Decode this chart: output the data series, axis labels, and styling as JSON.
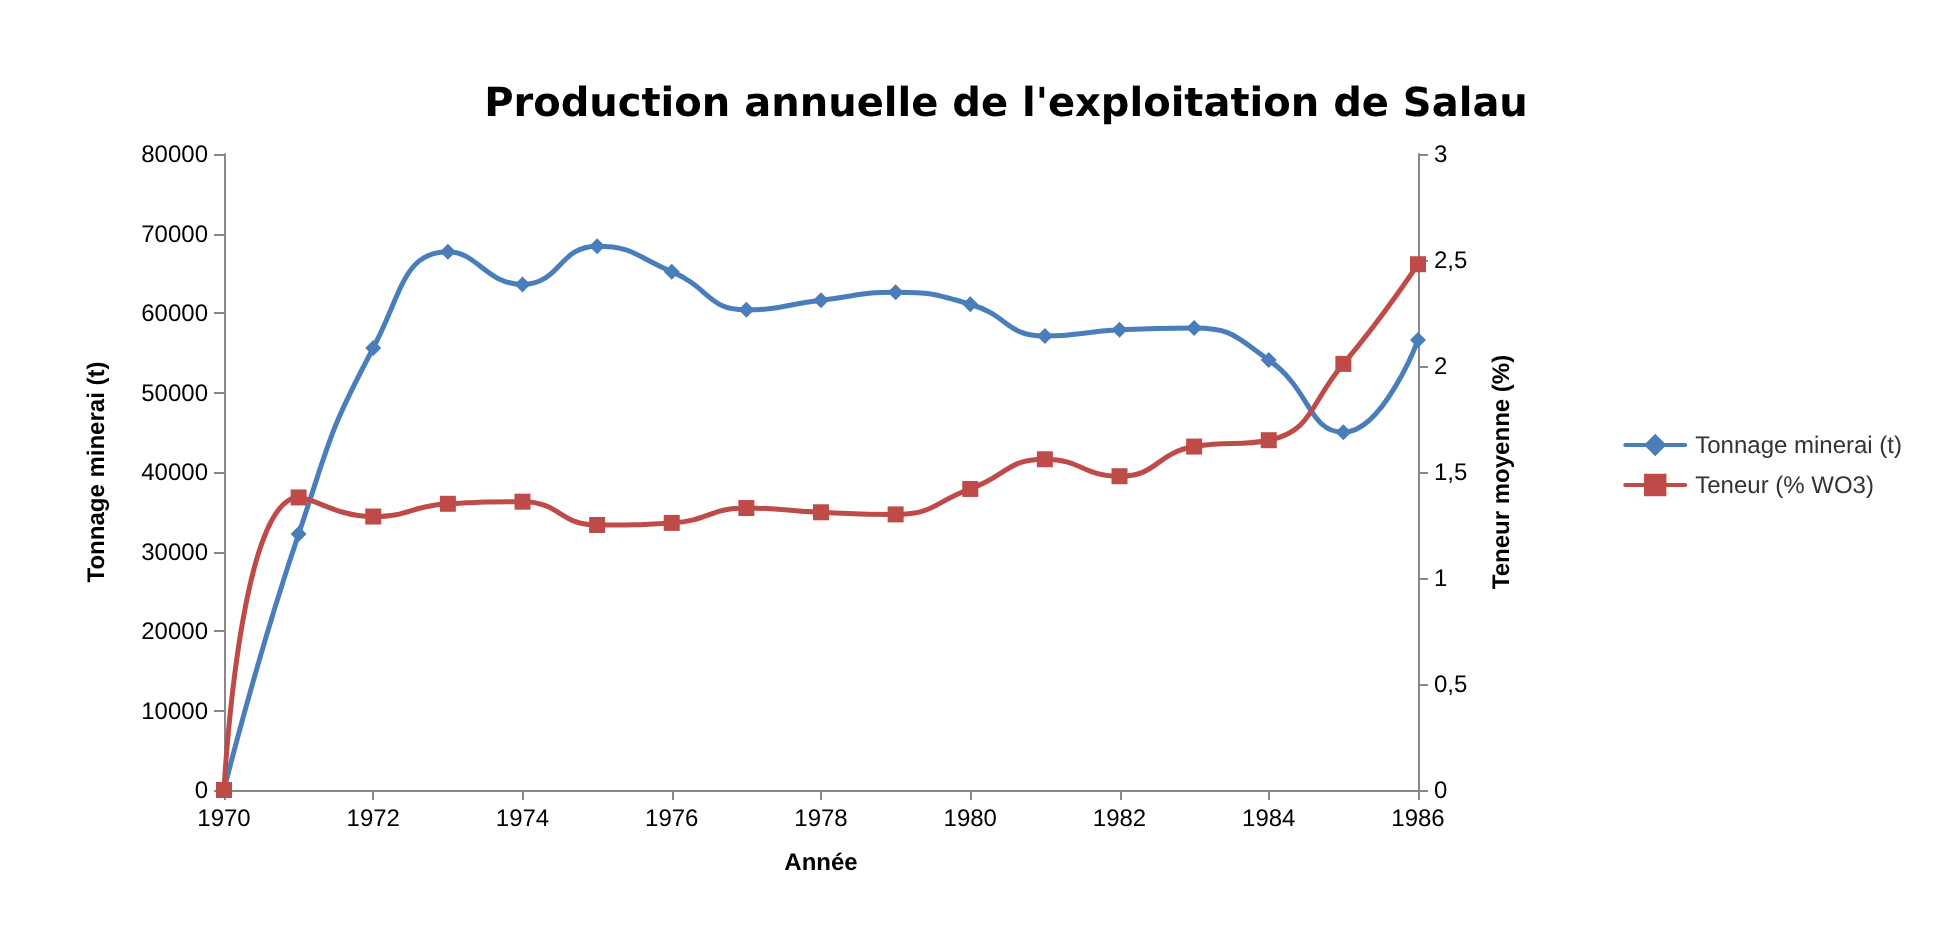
{
  "chart_data": {
    "type": "line",
    "title": "Production annuelle de l'exploitation de Salau",
    "xlabel": "Année",
    "ylabel": "Tonnage minerai (t)",
    "y2label": "Teneur moyenne (%)",
    "x": [
      1970,
      1971,
      1972,
      1973,
      1974,
      1975,
      1976,
      1977,
      1978,
      1979,
      1980,
      1981,
      1982,
      1983,
      1984,
      1985,
      1986
    ],
    "series": [
      {
        "name": "Tonnage minerai (t)",
        "color": "#4a7ebb",
        "marker": "diamond",
        "values": [
          0,
          32200,
          55600,
          67700,
          63600,
          68400,
          65200,
          60400,
          61600,
          62600,
          61100,
          57100,
          57900,
          58100,
          54100,
          45000,
          56600
        ]
      },
      {
        "name": "Teneur (% WO3)",
        "color": "#be4b48",
        "marker": "square",
        "axis": "y2",
        "values": [
          0,
          1.38,
          1.29,
          1.35,
          1.36,
          1.25,
          1.26,
          1.33,
          1.31,
          1.3,
          1.42,
          1.56,
          1.48,
          1.62,
          1.65,
          2.01,
          2.48
        ]
      }
    ],
    "xlim": [
      1970,
      1986
    ],
    "xticks": [
      1970,
      1972,
      1974,
      1976,
      1978,
      1980,
      1982,
      1984,
      1986
    ],
    "ylim": [
      0,
      80000
    ],
    "yticks": [
      0,
      10000,
      20000,
      30000,
      40000,
      50000,
      60000,
      70000,
      80000
    ],
    "y2lim": [
      0,
      3
    ],
    "y2ticks": [
      0,
      {
        "value": 0.5,
        "label": "0,5"
      },
      1,
      {
        "value": 1.5,
        "label": "1,5"
      },
      2,
      {
        "value": 2.5,
        "label": "2,5"
      },
      3
    ],
    "grid": false,
    "legend": "right"
  }
}
